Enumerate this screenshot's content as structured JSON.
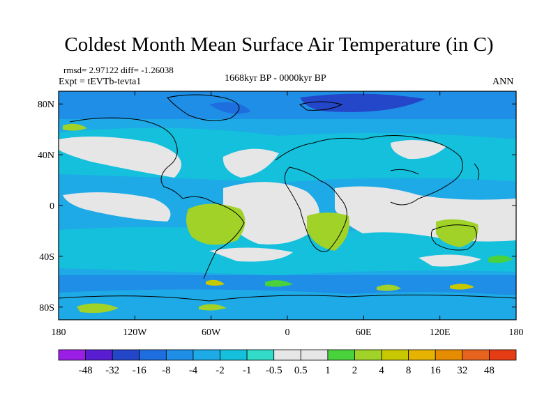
{
  "title": "Coldest Month Mean Surface Air Temperature (in C)",
  "stats": "rmsd= 2.97122  diff= -1.26038",
  "experiment": "Expt = tEVTb-tevta1",
  "period": "1668kyr BP - 0000kyr BP",
  "season": "ANN",
  "lat_ticks": [
    "80N",
    "40N",
    "0",
    "40S",
    "80S"
  ],
  "lat_values": [
    80,
    40,
    0,
    -40,
    -80
  ],
  "lon_ticks": [
    "180",
    "120W",
    "60W",
    "0",
    "60E",
    "120E",
    "180"
  ],
  "lon_values": [
    -180,
    -120,
    -60,
    0,
    60,
    120,
    180
  ],
  "map_extent": {
    "lon": [
      -180,
      180
    ],
    "lat": [
      -90,
      90
    ]
  },
  "colorbar": {
    "labels": [
      "-48",
      "-32",
      "-16",
      "-8",
      "-4",
      "-2",
      "-1",
      "-0.5",
      "0.5",
      "1",
      "2",
      "4",
      "8",
      "16",
      "32",
      "48"
    ],
    "colors": [
      "#9a1ee6",
      "#5a1ed2",
      "#2446c8",
      "#1e6ee0",
      "#1e8ee6",
      "#1eaae6",
      "#14c0dc",
      "#32dcc8",
      "#e6e6e6",
      "#4ad23c",
      "#a0d228",
      "#c8c800",
      "#e6b400",
      "#e68c00",
      "#e6641e",
      "#e63c14"
    ]
  },
  "colors": {
    "land_line": "#000000",
    "background_field": "#e6e6e6"
  }
}
